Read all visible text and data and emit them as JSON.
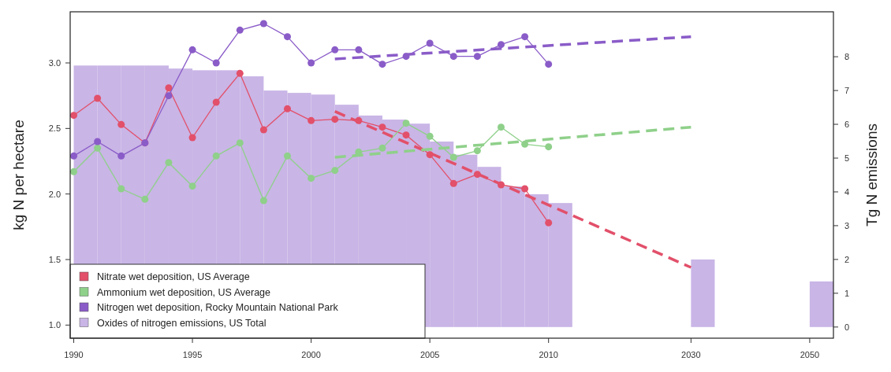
{
  "chart_data": {
    "type": "line",
    "xlabel": null,
    "ylabel": "kg N per hectare",
    "y2label": "Tg N emissions",
    "categories": [
      "1990",
      null,
      null,
      null,
      null,
      "1995",
      null,
      null,
      null,
      null,
      "2000",
      null,
      null,
      null,
      null,
      "2005",
      null,
      null,
      null,
      null,
      "2010",
      null,
      null,
      null,
      null,
      null,
      "2030",
      null,
      null,
      null,
      null,
      "2050"
    ],
    "ylim": [
      0.9,
      3.39
    ],
    "yticks": [
      {
        "value": 1,
        "label": "1.0"
      },
      {
        "value": 1.5,
        "label": "1.5"
      },
      {
        "value": 2,
        "label": "2.0"
      },
      {
        "value": 2.5,
        "label": "2.5"
      },
      {
        "value": 3,
        "label": "3.0"
      }
    ],
    "y2lim": [
      -0.33,
      9.33
    ],
    "y2ticks": [
      0,
      1,
      2,
      3,
      4,
      5,
      6,
      7,
      8
    ],
    "marker": "circle",
    "legend": "bottom left",
    "grid": false,
    "series": [
      {
        "name": "Nitrate wet deposition, US Average",
        "color": "#e2506a",
        "values": [
          2.6,
          2.73,
          2.53,
          2.39,
          2.81,
          2.43,
          2.7,
          2.92,
          2.49,
          2.65,
          2.56,
          2.57,
          2.56,
          2.51,
          2.45,
          2.3,
          2.08,
          2.15,
          2.07,
          2.04,
          1.78,
          null,
          null,
          null,
          null,
          null,
          null,
          null,
          null,
          null,
          null,
          null
        ]
      },
      {
        "name": "Ammonium wet deposition, US Average",
        "color": "#8fd08a",
        "values": [
          2.17,
          2.35,
          2.04,
          1.96,
          2.24,
          2.06,
          2.29,
          2.39,
          1.95,
          2.29,
          2.12,
          2.18,
          2.32,
          2.35,
          2.54,
          2.44,
          2.28,
          2.33,
          2.51,
          2.38,
          2.36,
          null,
          null,
          null,
          null,
          null,
          null,
          null,
          null,
          null,
          null,
          null
        ]
      },
      {
        "name": "Nitrogen wet deposition, Rocky Mountain National Park",
        "color": "#8a5cc8",
        "values": [
          2.29,
          2.4,
          2.29,
          2.39,
          2.75,
          3.1,
          3.0,
          3.25,
          3.3,
          3.2,
          3.0,
          3.1,
          3.1,
          2.99,
          3.05,
          3.15,
          3.05,
          3.05,
          3.14,
          3.2,
          2.99,
          null,
          null,
          null,
          null,
          null,
          null,
          null,
          null,
          null,
          null,
          null
        ]
      },
      {
        "name": "Oxides of nitrogen emissions, US Total",
        "type": "bar",
        "axis": "y2",
        "color": "#c9b5e6",
        "values": [
          7.74,
          7.74,
          7.74,
          7.74,
          7.65,
          7.6,
          7.6,
          7.42,
          7.0,
          6.93,
          6.88,
          6.58,
          6.26,
          6.14,
          6.02,
          5.49,
          5.1,
          4.74,
          4.16,
          3.93,
          3.67,
          null,
          null,
          null,
          null,
          null,
          2.0,
          null,
          null,
          null,
          null,
          1.35
        ]
      },
      {
        "color": "#e2506a",
        "line_style": "dashed",
        "marker": "none",
        "values": [
          null,
          null,
          null,
          null,
          null,
          null,
          null,
          null,
          null,
          null,
          null,
          2.63,
          null,
          null,
          null,
          null,
          null,
          null,
          null,
          null,
          null,
          null,
          null,
          null,
          null,
          null,
          1.44,
          null,
          null,
          null,
          null,
          null
        ]
      },
      {
        "color": "#8fd08a",
        "line_style": "dashed",
        "marker": "none",
        "values": [
          null,
          null,
          null,
          null,
          null,
          null,
          null,
          null,
          null,
          null,
          null,
          2.28,
          null,
          null,
          null,
          null,
          null,
          null,
          null,
          null,
          null,
          null,
          null,
          null,
          null,
          null,
          2.51,
          null,
          null,
          null,
          null,
          null
        ]
      },
      {
        "color": "#8a5cc8",
        "line_style": "dashed",
        "marker": "none",
        "values": [
          null,
          null,
          null,
          null,
          null,
          null,
          null,
          null,
          null,
          null,
          null,
          3.03,
          null,
          null,
          null,
          null,
          null,
          null,
          null,
          null,
          null,
          null,
          null,
          null,
          null,
          null,
          3.2,
          null,
          null,
          null,
          null,
          null
        ]
      }
    ]
  }
}
